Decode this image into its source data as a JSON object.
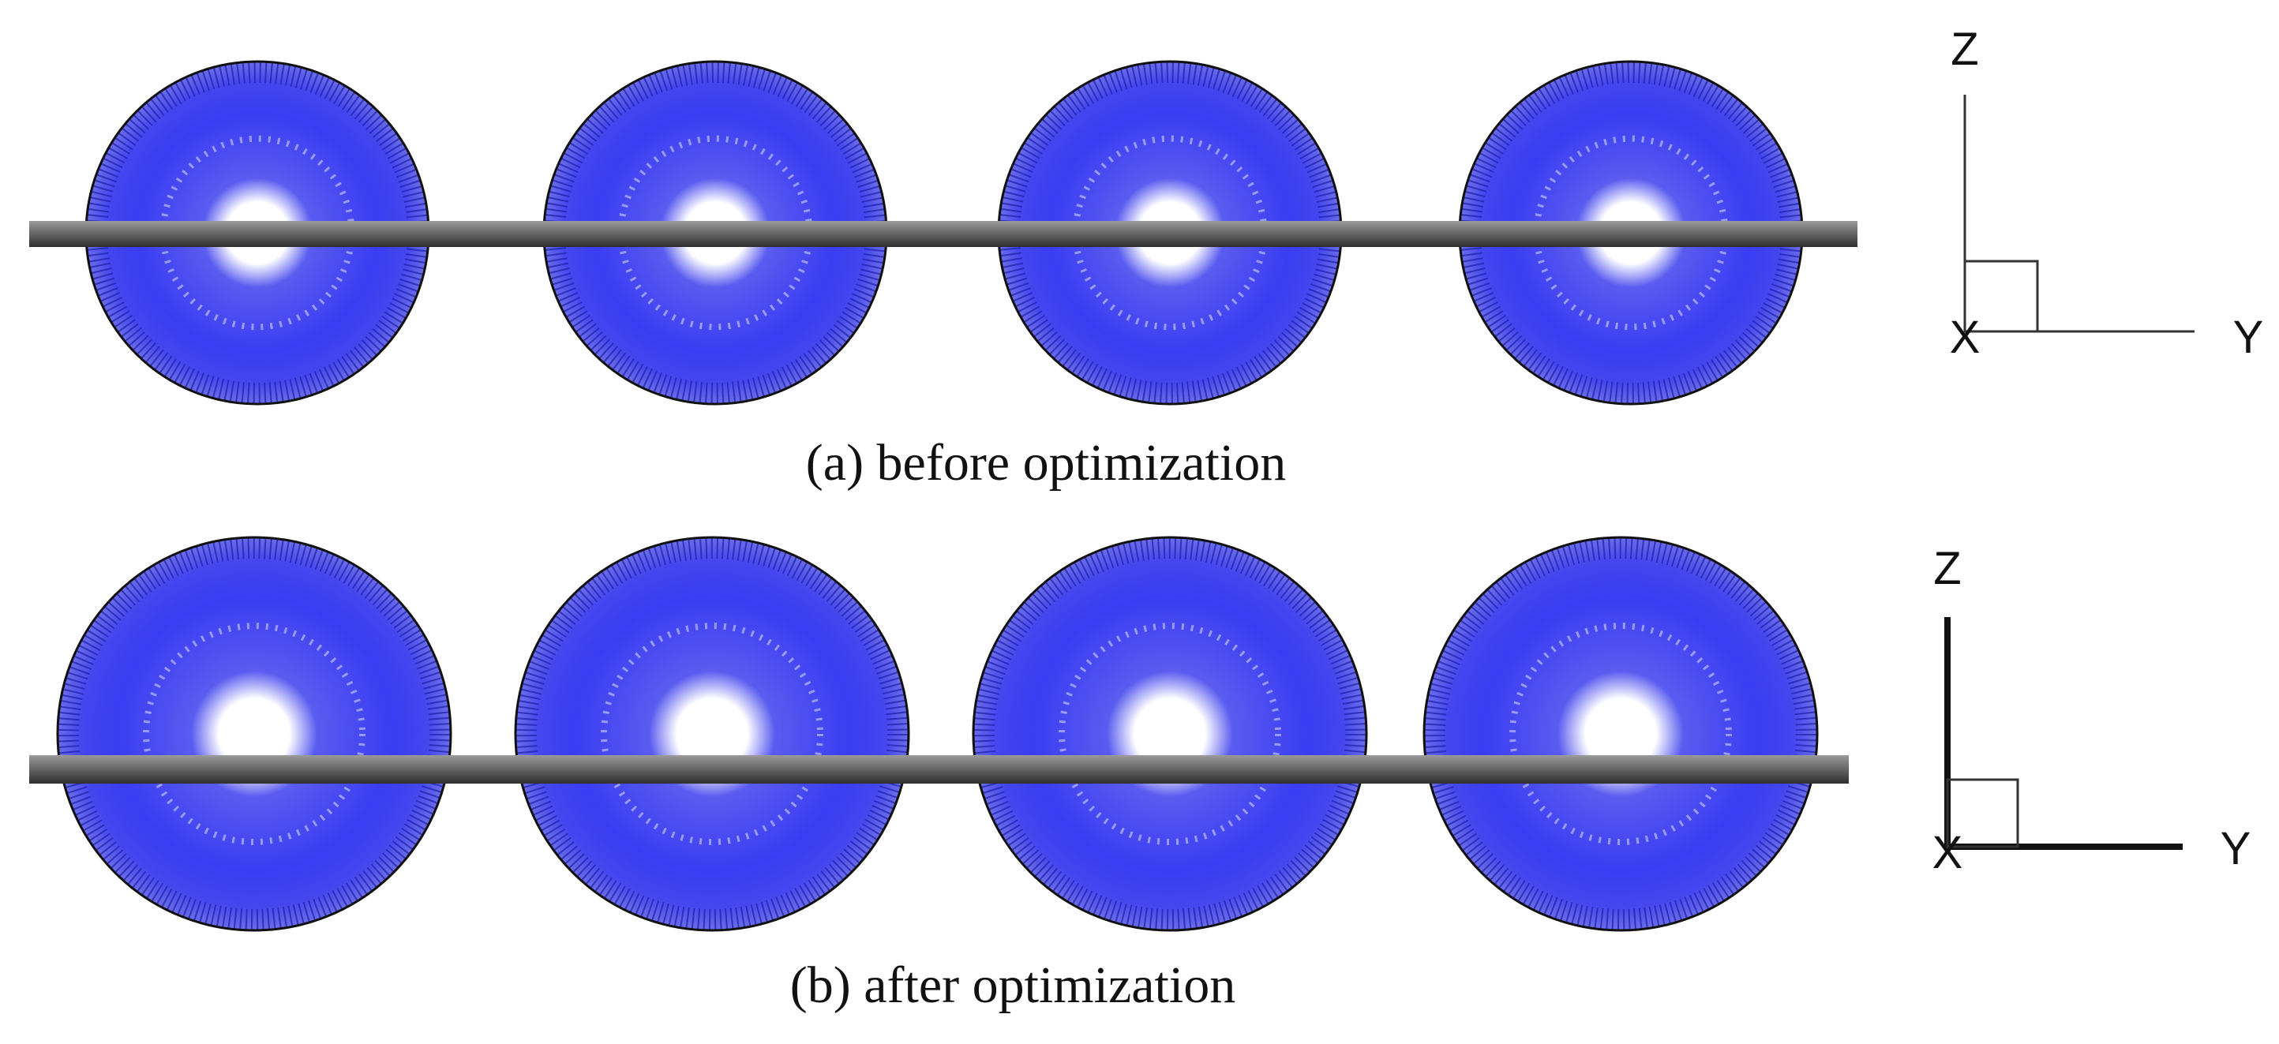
{
  "panels": [
    {
      "caption": "(a) before optimization",
      "axes": {
        "z": "Z",
        "y": "Y",
        "x": "X"
      }
    },
    {
      "caption": "(b) after optimization",
      "axes": {
        "z": "Z",
        "y": "Y",
        "x": "X"
      }
    }
  ]
}
